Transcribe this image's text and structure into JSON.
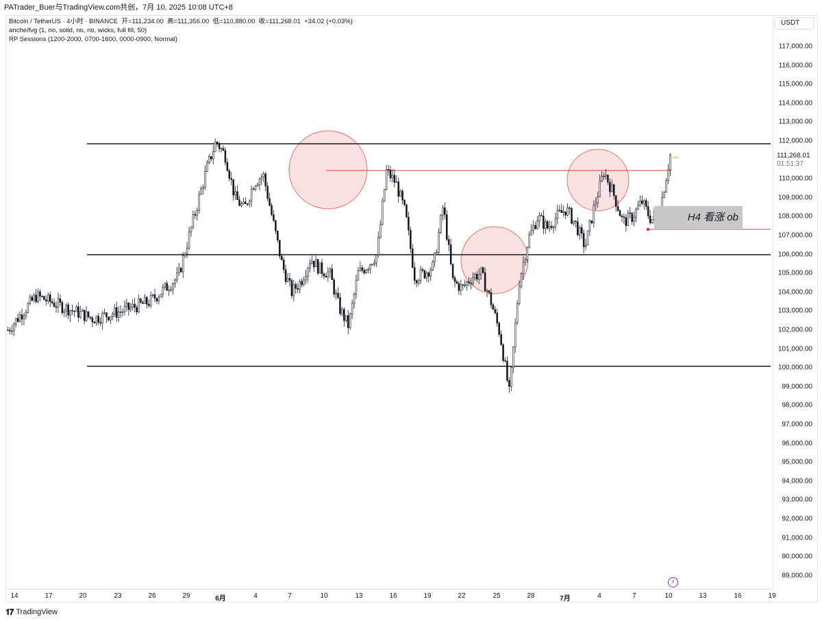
{
  "share_line": "PATrader_Buer与TradingView.com共创，7月 10, 2025 10:08 UTC+8",
  "legend": {
    "symbol": "Bitcoin / TetherUS · 4小时 · BINANCE",
    "open": "开=111,234.00",
    "high": "高=111,356.00",
    "low": "低=110,880.00",
    "close": "收=111,268.01",
    "change": "+34.02 (+0.03%)",
    "indicator1": "anche/fvg (1, no, solid, no, no, wicks, full fill, 50)",
    "indicator2": "RP Sessions (1200-2000, 0700-1600, 0000-0900, Normal)"
  },
  "currency": "USDT",
  "current_price": "111,268.01",
  "countdown": "01:51:37",
  "annotation_ob": "H4 看涨 ob",
  "price_labels": [
    "117,000.00",
    "116,000.00",
    "115,000.00",
    "114,000.00",
    "113,000.00",
    "112,000.00",
    "110,000.00",
    "109,000.00",
    "108,000.00",
    "107,000.00",
    "106,000.00",
    "105,000.00",
    "104,000.00",
    "103,000.00",
    "102,000.00",
    "101,000.00",
    "100,000.00",
    "99,000.00",
    "98,000.00",
    "97,000.00",
    "96,000.00",
    "95,000.00",
    "94,000.00",
    "93,000.00",
    "92,000.00",
    "91,000.00",
    "90,000.00",
    "89,000.00"
  ],
  "time_labels": [
    "14",
    "17",
    "20",
    "23",
    "26",
    "29",
    "6月",
    "4",
    "7",
    "10",
    "13",
    "16",
    "19",
    "22",
    "25",
    "28",
    "7月",
    "4",
    "7",
    "10",
    "13",
    "16",
    "19"
  ],
  "footer_brand": "TradingView",
  "icons": {
    "footer_logo": "tradingview-logo-icon",
    "alert": "lightning-bolt-icon"
  },
  "colors": {
    "candle": "#131722",
    "circle_fill": "#f8d7d7",
    "circle_stroke": "#e57373",
    "red_line": "#e53935",
    "green_candle": "#4caf50",
    "ob_box": "#c8c8c8"
  },
  "chart_data": {
    "type": "candlestick",
    "symbol": "Bitcoin / TetherUS",
    "interval": "4小时",
    "ylim": [
      88500,
      117500
    ],
    "horizontal_levels": [
      112000,
      106000,
      100200
    ],
    "resistance_line": 110400,
    "ob_zone": [
      107400,
      108600
    ],
    "ohlc_last": {
      "open": 111234.0,
      "high": 111356.0,
      "low": 110880.0,
      "close": 111268.01
    },
    "path_points": [
      [
        0,
        102000
      ],
      [
        3,
        103800
      ],
      [
        6,
        103200
      ],
      [
        9,
        102600
      ],
      [
        12,
        103000
      ],
      [
        15,
        103500
      ],
      [
        18,
        104800
      ],
      [
        21,
        110500
      ],
      [
        22,
        112000
      ],
      [
        23,
        111200
      ],
      [
        24,
        109000
      ],
      [
        25,
        108400
      ],
      [
        26,
        109800
      ],
      [
        27,
        110200
      ],
      [
        28,
        107800
      ],
      [
        29,
        105400
      ],
      [
        30,
        104000
      ],
      [
        31,
        104600
      ],
      [
        32,
        105800
      ],
      [
        33,
        105200
      ],
      [
        34,
        105000
      ],
      [
        35,
        103200
      ],
      [
        36,
        102200
      ],
      [
        37,
        105000
      ],
      [
        38,
        105400
      ],
      [
        39,
        106000
      ],
      [
        40,
        110400
      ],
      [
        41,
        109800
      ],
      [
        42,
        108200
      ],
      [
        43,
        104800
      ],
      [
        44,
        105000
      ],
      [
        45,
        105400
      ],
      [
        46,
        108600
      ],
      [
        47,
        104600
      ],
      [
        48,
        104200
      ],
      [
        49,
        104800
      ],
      [
        50,
        105000
      ],
      [
        51,
        103600
      ],
      [
        52,
        101800
      ],
      [
        53,
        98600
      ],
      [
        54,
        104500
      ],
      [
        55,
        106800
      ],
      [
        56,
        108000
      ],
      [
        57,
        107400
      ],
      [
        58,
        108000
      ],
      [
        59,
        108400
      ],
      [
        60,
        107600
      ],
      [
        61,
        106400
      ],
      [
        62,
        108600
      ],
      [
        63,
        110400
      ],
      [
        64,
        109200
      ],
      [
        65,
        107700
      ],
      [
        66,
        108000
      ],
      [
        67,
        108800
      ],
      [
        68,
        107800
      ],
      [
        69,
        108600
      ],
      [
        70,
        111268
      ]
    ]
  }
}
